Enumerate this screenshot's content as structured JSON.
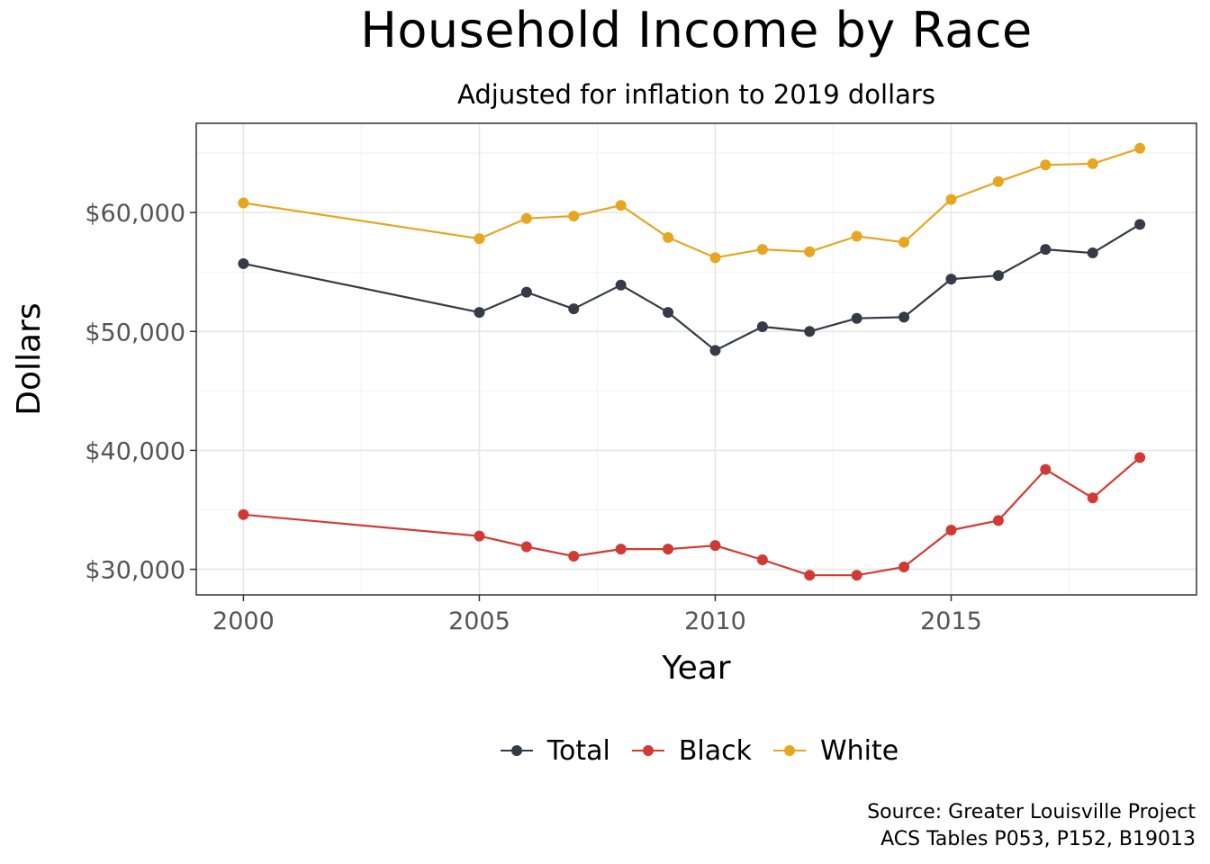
{
  "chart_data": {
    "type": "line",
    "title": "Household Income by Race",
    "subtitle": "Adjusted for inflation to 2019 dollars",
    "xlabel": "Year",
    "ylabel": "Dollars",
    "caption": [
      "Source: Greater Louisville Project",
      "ACS Tables P053, P152, B19013"
    ],
    "x": [
      2000,
      2005,
      2006,
      2007,
      2008,
      2009,
      2010,
      2011,
      2012,
      2013,
      2014,
      2015,
      2016,
      2017,
      2018,
      2019
    ],
    "xlim": [
      1999,
      2020.2
    ],
    "ylim": [
      27850,
      67500
    ],
    "x_ticks": [
      2000,
      2005,
      2010,
      2015
    ],
    "x_tick_labels": [
      "2000",
      "2005",
      "2010",
      "2015"
    ],
    "y_ticks": [
      30000,
      40000,
      50000,
      60000
    ],
    "y_tick_labels": [
      "$30,000",
      "$40,000",
      "$50,000",
      "$60,000"
    ],
    "grid": true,
    "legend_position": "bottom",
    "series": [
      {
        "name": "Total",
        "color": "#353a47",
        "values": [
          55700,
          51600,
          53300,
          51900,
          53900,
          51600,
          48400,
          50400,
          50000,
          51100,
          51200,
          54400,
          54700,
          56900,
          56600,
          59000
        ]
      },
      {
        "name": "Black",
        "color": "#d13a34",
        "values": [
          34600,
          32800,
          31900,
          31100,
          31700,
          31700,
          32000,
          30800,
          29500,
          29500,
          30200,
          33300,
          34100,
          38400,
          36000,
          39400
        ]
      },
      {
        "name": "White",
        "color": "#e7a622",
        "values": [
          60800,
          57800,
          59500,
          59700,
          60600,
          57900,
          56200,
          56900,
          56700,
          58000,
          57500,
          61100,
          62600,
          64000,
          64100,
          65400
        ]
      }
    ]
  }
}
